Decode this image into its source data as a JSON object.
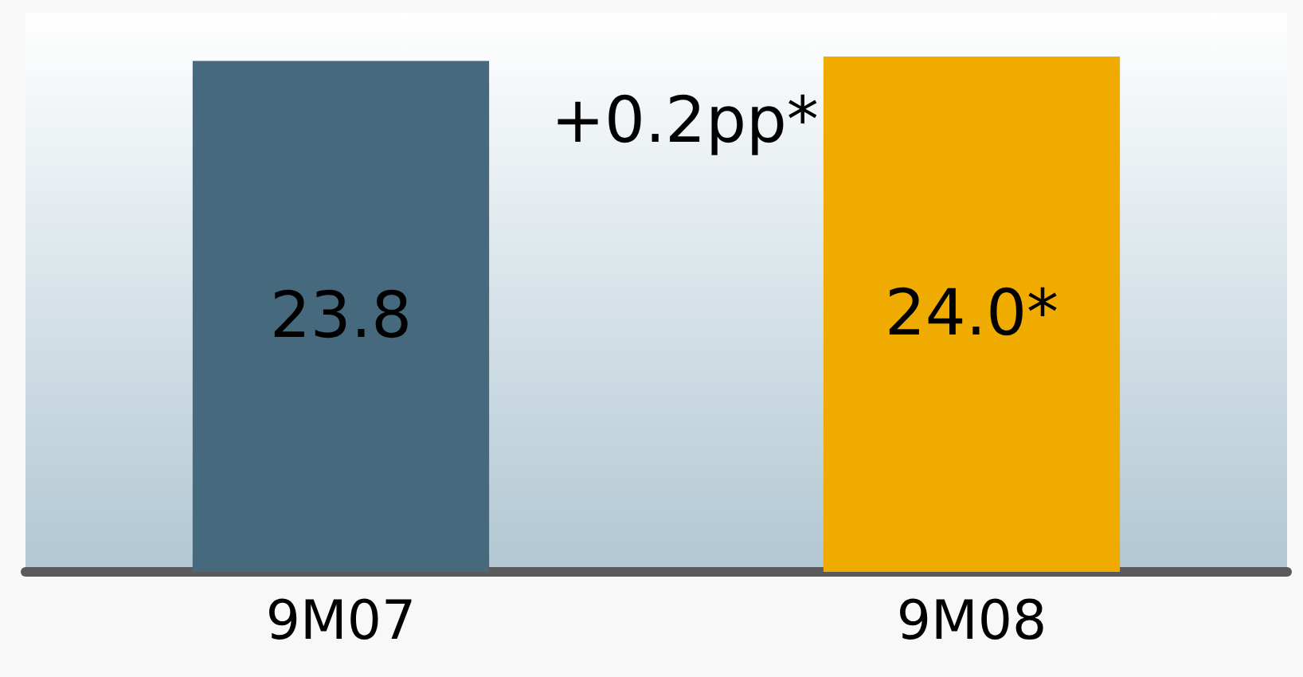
{
  "chart_data": {
    "type": "bar",
    "categories": [
      "9M07",
      "9M08"
    ],
    "values": [
      23.8,
      24.0
    ],
    "colors": [
      "#46697e",
      "#f0ab00"
    ],
    "value_labels": [
      "23.8",
      "24.0*"
    ],
    "annotations": [
      "+0.2pp*"
    ]
  }
}
